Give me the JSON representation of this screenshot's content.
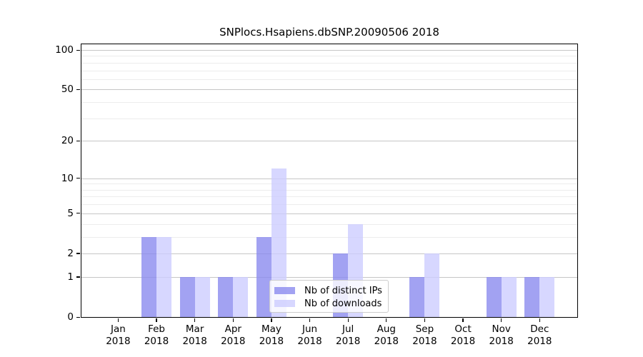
{
  "chart_data": {
    "type": "bar",
    "title": "SNPlocs.Hsapiens.dbSNP.20090506 2018",
    "categories": [
      "Jan",
      "Feb",
      "Mar",
      "Apr",
      "May",
      "Jun",
      "Jul",
      "Aug",
      "Sep",
      "Oct",
      "Nov",
      "Dec"
    ],
    "x_tick_second_line": "2018",
    "series": [
      {
        "name": "Nb of distinct IPs",
        "color": "#8888ee",
        "fill": "rgba(136,136,238,0.78)",
        "values": [
          0,
          3,
          1,
          1,
          3,
          0,
          2,
          0,
          1,
          0,
          1,
          1
        ]
      },
      {
        "name": "Nb of downloads",
        "color": "#ccccff",
        "fill": "rgba(204,204,255,0.78)",
        "values": [
          0,
          3,
          1,
          1,
          12,
          0,
          4,
          0,
          2,
          0,
          1,
          1
        ]
      }
    ],
    "y_ticks": [
      0,
      1,
      2,
      5,
      10,
      20,
      50,
      100
    ],
    "minor_gridline_values": [
      3,
      4,
      6,
      7,
      8,
      9,
      30,
      40,
      60,
      70,
      80,
      90
    ],
    "scale": "log1p",
    "ylim": [
      0,
      100
    ],
    "xlabel": "",
    "ylabel": "",
    "grid": true,
    "legend_position": "lower center",
    "background": "#ffffff",
    "gridline_major_color": "#c6c6c6",
    "gridline_minor_color": "#ececec"
  }
}
